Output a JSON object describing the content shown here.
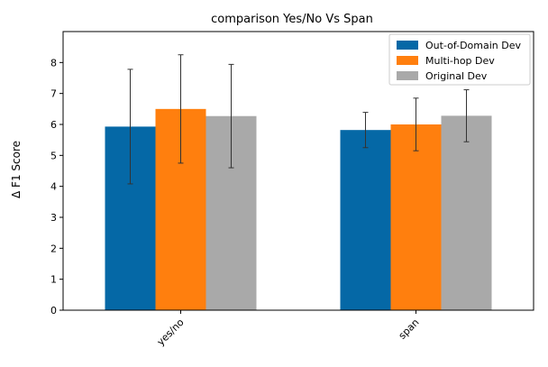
{
  "chart_data": {
    "type": "bar",
    "title": "comparison Yes/No Vs Span",
    "xlabel": "",
    "ylabel": "Δ F1 Score",
    "categories": [
      "yes/no",
      "span"
    ],
    "ylim": [
      0,
      9
    ],
    "yticks": [
      "0",
      "1",
      "2",
      "3",
      "4",
      "5",
      "6",
      "7",
      "8"
    ],
    "grid": false,
    "legend_position": "top-right",
    "series": [
      {
        "name": "Out-of-Domain Dev",
        "color": "#0568a6",
        "values": [
          5.93,
          5.82
        ],
        "err": [
          1.85,
          0.57
        ]
      },
      {
        "name": "Multi-hop Dev",
        "color": "#ff7f0e",
        "values": [
          6.5,
          6.0
        ],
        "err": [
          1.75,
          0.85
        ]
      },
      {
        "name": "Original Dev",
        "color": "#a9a9a9",
        "values": [
          6.27,
          6.28
        ],
        "err": [
          1.67,
          0.84
        ]
      }
    ]
  }
}
